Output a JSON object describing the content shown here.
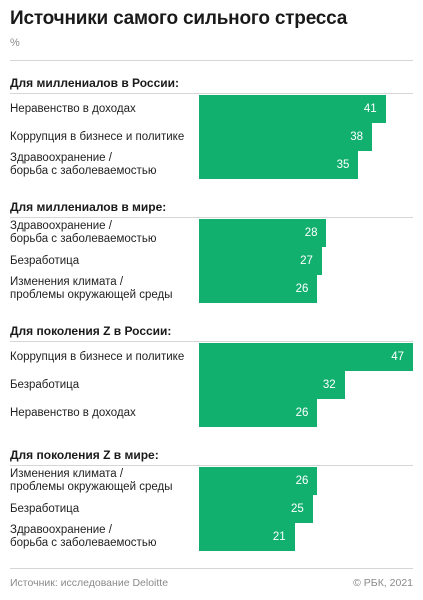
{
  "title": "Источники самого сильного стресса",
  "unit": "%",
  "source": "Источник: исследование Deloitte",
  "copyright": "© РБК, 2021",
  "colors": {
    "bar": "#12b06f",
    "text": "#1a1a1a",
    "muted": "#8a8a8a"
  },
  "chart_data": {
    "type": "bar",
    "orientation": "horizontal",
    "max_value": 47,
    "groups": [
      {
        "name": "Для миллениалов в России:",
        "categories": [
          "Неравенство в доходах",
          "Коррупция в бизнесе и политике",
          "Здравоохранение /\nборьба с заболеваемостью"
        ],
        "values": [
          41,
          38,
          35
        ]
      },
      {
        "name": "Для миллениалов в мире:",
        "categories": [
          "Здравоохранение /\nборьба с заболеваемостью",
          "Безработица",
          "Изменения климата /\nпроблемы окружающей среды"
        ],
        "values": [
          28,
          27,
          26
        ]
      },
      {
        "name": "Для поколения Z в России:",
        "categories": [
          "Коррупция в бизнесе и политике",
          "Безработица",
          "Неравенство в доходах"
        ],
        "values": [
          47,
          32,
          26
        ]
      },
      {
        "name": "Для поколения Z в мире:",
        "categories": [
          "Изменения климата /\nпроблемы окружающей среды",
          "Безработица",
          "Здравоохранение /\nборьба с заболеваемостью"
        ],
        "values": [
          26,
          25,
          21
        ]
      }
    ]
  }
}
